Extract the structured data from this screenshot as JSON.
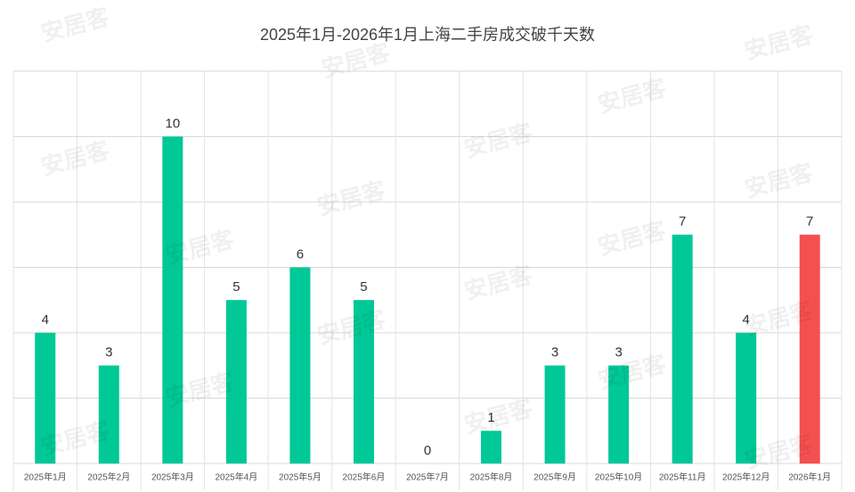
{
  "chart_data": {
    "type": "bar",
    "title": "2025年1月-2026年1月上海二手房成交破千天数",
    "categories": [
      "2025年1月",
      "2025年2月",
      "2025年3月",
      "2025年4月",
      "2025年5月",
      "2025年6月",
      "2025年7月",
      "2025年8月",
      "2025年9月",
      "2025年10月",
      "2025年11月",
      "2025年12月",
      "2026年1月"
    ],
    "values": [
      4,
      3,
      10,
      5,
      6,
      5,
      0,
      1,
      3,
      3,
      7,
      4,
      7
    ],
    "colors": [
      "#00c896",
      "#00c896",
      "#00c896",
      "#00c896",
      "#00c896",
      "#00c896",
      "#00c896",
      "#00c896",
      "#00c896",
      "#00c896",
      "#00c896",
      "#00c896",
      "#f55050"
    ],
    "ylim": [
      0,
      12
    ],
    "yticks": [
      0,
      2,
      4,
      6,
      8,
      10,
      12
    ],
    "grid": true,
    "watermark": "安居客"
  }
}
